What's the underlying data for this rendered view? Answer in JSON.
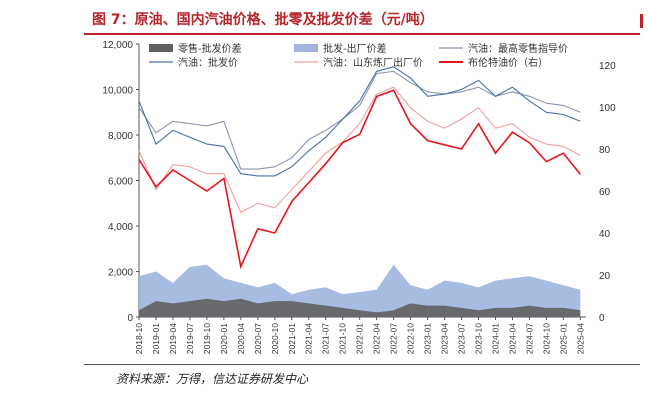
{
  "figure": {
    "title": "图 7：原油、国内汽油价格、批零及批发价差（元/吨）",
    "source": "资料来源：万得，信达证券研发中心"
  },
  "chart_data": {
    "type": "line",
    "x_tick_labels": [
      "2018-10",
      "2019-01",
      "2019-04",
      "2019-07",
      "2019-10",
      "2020-01",
      "2020-04",
      "2020-07",
      "2020-10",
      "2021-01",
      "2021-04",
      "2021-07",
      "2021-10",
      "2022-01",
      "2022-04",
      "2022-07",
      "2022-10",
      "2023-01",
      "2023-04",
      "2023-07",
      "2023-10",
      "2024-01",
      "2024-04",
      "2024-07",
      "2024-10",
      "2025-01",
      "2025-04"
    ],
    "x_range": [
      "2018-10",
      "2025-05"
    ],
    "left_axis": {
      "ticks": [
        "0",
        "2,000",
        "4,000",
        "6,000",
        "8,000",
        "10,000",
        "12,000"
      ],
      "ylim": [
        0,
        12000
      ]
    },
    "right_axis": {
      "ticks": [
        "0",
        "20",
        "40",
        "60",
        "80",
        "100",
        "120"
      ],
      "ylim": [
        0,
        130
      ]
    },
    "legend": [
      "零售-批发价差",
      "批发-出厂价差",
      "汽油：最高零售指导价",
      "汽油：批发价",
      "汽油：山东炼厂出厂价",
      "布伦特油价（右）"
    ],
    "legend_placement": "top",
    "series": [
      {
        "name": "汽油：最高零售指导价",
        "axis": "left",
        "kind": "line",
        "color": "#8c96ac",
        "x": [
          "2018-10",
          "2019-01",
          "2019-04",
          "2019-07",
          "2019-10",
          "2020-01",
          "2020-04",
          "2020-07",
          "2020-10",
          "2021-01",
          "2021-04",
          "2021-07",
          "2021-10",
          "2022-01",
          "2022-04",
          "2022-07",
          "2022-10",
          "2023-01",
          "2023-04",
          "2023-07",
          "2023-10",
          "2024-01",
          "2024-04",
          "2024-07",
          "2024-10",
          "2025-01",
          "2025-04"
        ],
        "values": [
          9200,
          8100,
          8600,
          8500,
          8400,
          8600,
          6500,
          6500,
          6600,
          7000,
          7800,
          8200,
          8700,
          9300,
          10700,
          10800,
          10300,
          9900,
          9800,
          9900,
          10100,
          9700,
          9900,
          9700,
          9400,
          9300,
          9000
        ]
      },
      {
        "name": "汽油：批发价",
        "axis": "left",
        "kind": "line",
        "color": "#4a6faf",
        "x": [
          "2018-10",
          "2019-01",
          "2019-04",
          "2019-07",
          "2019-10",
          "2020-01",
          "2020-04",
          "2020-07",
          "2020-10",
          "2021-01",
          "2021-04",
          "2021-07",
          "2021-10",
          "2022-01",
          "2022-04",
          "2022-07",
          "2022-10",
          "2023-01",
          "2023-04",
          "2023-07",
          "2023-10",
          "2024-01",
          "2024-04",
          "2024-07",
          "2024-10",
          "2025-01",
          "2025-04"
        ],
        "values": [
          9500,
          7600,
          8200,
          7900,
          7600,
          7500,
          6300,
          6200,
          6200,
          6600,
          7300,
          7900,
          8700,
          9500,
          10800,
          11000,
          10500,
          9700,
          9800,
          10000,
          10400,
          9700,
          10100,
          9500,
          9000,
          8900,
          8600
        ]
      },
      {
        "name": "汽油：山东炼厂出厂价",
        "axis": "left",
        "kind": "line",
        "color": "#f0a0a0",
        "x": [
          "2018-10",
          "2019-01",
          "2019-04",
          "2019-07",
          "2019-10",
          "2020-01",
          "2020-04",
          "2020-07",
          "2020-10",
          "2021-01",
          "2021-04",
          "2021-07",
          "2021-10",
          "2022-01",
          "2022-04",
          "2022-07",
          "2022-10",
          "2023-01",
          "2023-04",
          "2023-07",
          "2023-10",
          "2024-01",
          "2024-04",
          "2024-07",
          "2024-10",
          "2025-01",
          "2025-04"
        ],
        "values": [
          7300,
          5600,
          6700,
          6600,
          6300,
          6300,
          4600,
          5000,
          4800,
          5600,
          6400,
          7200,
          7700,
          8500,
          9800,
          10100,
          9200,
          8600,
          8300,
          8700,
          9200,
          8300,
          8500,
          7900,
          7600,
          7500,
          7100
        ]
      },
      {
        "name": "布伦特油价（右）",
        "axis": "right",
        "kind": "line",
        "color": "#e8141c",
        "x": [
          "2018-10",
          "2019-01",
          "2019-04",
          "2019-07",
          "2019-10",
          "2020-01",
          "2020-04",
          "2020-07",
          "2020-10",
          "2021-01",
          "2021-04",
          "2021-07",
          "2021-10",
          "2022-01",
          "2022-04",
          "2022-07",
          "2022-10",
          "2023-01",
          "2023-04",
          "2023-07",
          "2023-10",
          "2024-01",
          "2024-04",
          "2024-07",
          "2024-10",
          "2025-01",
          "2025-04"
        ],
        "values": [
          75,
          62,
          70,
          65,
          60,
          66,
          24,
          42,
          40,
          55,
          64,
          73,
          83,
          87,
          105,
          108,
          92,
          84,
          82,
          80,
          92,
          78,
          88,
          83,
          74,
          78,
          68
        ]
      },
      {
        "name": "批发-出厂价差",
        "axis": "left",
        "kind": "area",
        "color": "#9fb4de",
        "x": [
          "2018-10",
          "2019-01",
          "2019-04",
          "2019-07",
          "2019-10",
          "2020-01",
          "2020-04",
          "2020-07",
          "2020-10",
          "2021-01",
          "2021-04",
          "2021-07",
          "2021-10",
          "2022-01",
          "2022-04",
          "2022-07",
          "2022-10",
          "2023-01",
          "2023-04",
          "2023-07",
          "2023-10",
          "2024-01",
          "2024-04",
          "2024-07",
          "2024-10",
          "2025-01",
          "2025-04"
        ],
        "values": [
          1800,
          2000,
          1500,
          2200,
          2300,
          1700,
          1500,
          1300,
          1500,
          1000,
          1200,
          1300,
          1000,
          1100,
          1200,
          2300,
          1400,
          1200,
          1600,
          1500,
          1300,
          1600,
          1700,
          1800,
          1600,
          1400,
          1200
        ]
      },
      {
        "name": "零售-批发价差",
        "axis": "left",
        "kind": "area",
        "color": "#606060",
        "x": [
          "2018-10",
          "2019-01",
          "2019-04",
          "2019-07",
          "2019-10",
          "2020-01",
          "2020-04",
          "2020-07",
          "2020-10",
          "2021-01",
          "2021-04",
          "2021-07",
          "2021-10",
          "2022-01",
          "2022-04",
          "2022-07",
          "2022-10",
          "2023-01",
          "2023-04",
          "2023-07",
          "2023-10",
          "2024-01",
          "2024-04",
          "2024-07",
          "2024-10",
          "2025-01",
          "2025-04"
        ],
        "values": [
          300,
          700,
          600,
          700,
          800,
          700,
          800,
          600,
          700,
          700,
          600,
          500,
          400,
          300,
          200,
          300,
          600,
          500,
          500,
          400,
          300,
          400,
          400,
          500,
          400,
          400,
          300
        ]
      }
    ]
  }
}
